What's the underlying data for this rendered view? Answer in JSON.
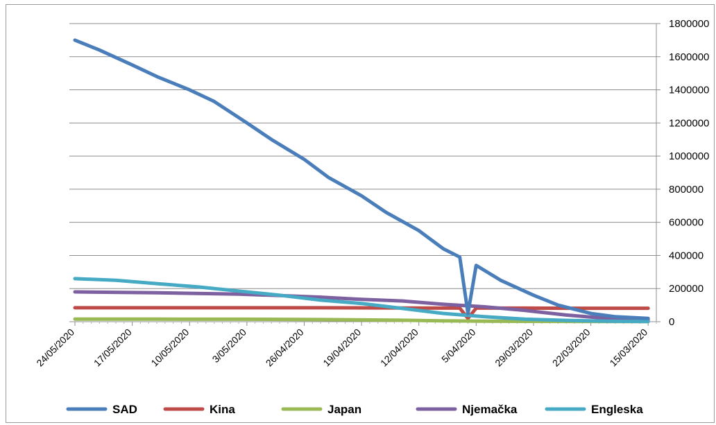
{
  "chart_data": {
    "type": "line",
    "title": "",
    "xlabel": "",
    "ylabel": "",
    "y_axis_position": "right",
    "x_axis_reversed": true,
    "ylim": [
      0,
      1800000
    ],
    "yticks": [
      "0",
      "200000",
      "400000",
      "600000",
      "800000",
      "1000000",
      "1200000",
      "1400000",
      "1600000",
      "1800000"
    ],
    "x_tick_labels": [
      "24/05/2020",
      "17/05/2020",
      "10/05/2020",
      "3/05/2020",
      "26/04/2020",
      "19/04/2020",
      "12/04/2020",
      "5/04/2020",
      "29/03/2020",
      "22/03/2020",
      "15/03/2020"
    ],
    "grid": "horizontal",
    "legend_position": "bottom",
    "x_day_range": [
      0,
      71
    ],
    "series": [
      {
        "name": "SAD",
        "color": "#4a7ebb",
        "points": [
          [
            0,
            1700000
          ],
          [
            3,
            1640000
          ],
          [
            7,
            1550000
          ],
          [
            10,
            1480000
          ],
          [
            14,
            1400000
          ],
          [
            17,
            1330000
          ],
          [
            21,
            1200000
          ],
          [
            24,
            1100000
          ],
          [
            28,
            980000
          ],
          [
            31,
            870000
          ],
          [
            35,
            760000
          ],
          [
            38,
            660000
          ],
          [
            42,
            550000
          ],
          [
            45,
            440000
          ],
          [
            47,
            390000
          ],
          [
            48,
            50000
          ],
          [
            49,
            340000
          ],
          [
            52,
            250000
          ],
          [
            56,
            160000
          ],
          [
            59,
            100000
          ],
          [
            63,
            50000
          ],
          [
            66,
            30000
          ],
          [
            70,
            20000
          ]
        ]
      },
      {
        "name": "Kina",
        "color": "#be4b48",
        "points": [
          [
            0,
            84000
          ],
          [
            10,
            84000
          ],
          [
            20,
            84000
          ],
          [
            30,
            84000
          ],
          [
            40,
            83000
          ],
          [
            47,
            82000
          ],
          [
            48,
            20000
          ],
          [
            49,
            82000
          ],
          [
            55,
            82000
          ],
          [
            60,
            81000
          ],
          [
            70,
            81000
          ]
        ]
      },
      {
        "name": "Japan",
        "color": "#98b954",
        "points": [
          [
            0,
            16000
          ],
          [
            10,
            15500
          ],
          [
            20,
            15000
          ],
          [
            30,
            13000
          ],
          [
            40,
            9000
          ],
          [
            45,
            5000
          ],
          [
            50,
            3000
          ],
          [
            55,
            2000
          ],
          [
            60,
            1500
          ],
          [
            70,
            1000
          ]
        ]
      },
      {
        "name": "Njemačka",
        "color": "#7d60a0",
        "points": [
          [
            0,
            180000
          ],
          [
            10,
            175000
          ],
          [
            20,
            166000
          ],
          [
            25,
            158000
          ],
          [
            30,
            148000
          ],
          [
            35,
            135000
          ],
          [
            40,
            125000
          ],
          [
            45,
            105000
          ],
          [
            50,
            90000
          ],
          [
            55,
            68000
          ],
          [
            60,
            40000
          ],
          [
            65,
            20000
          ],
          [
            70,
            10000
          ]
        ]
      },
      {
        "name": "Engleska",
        "color": "#46aac5",
        "points": [
          [
            0,
            260000
          ],
          [
            5,
            250000
          ],
          [
            10,
            230000
          ],
          [
            15,
            210000
          ],
          [
            20,
            185000
          ],
          [
            25,
            160000
          ],
          [
            30,
            130000
          ],
          [
            35,
            110000
          ],
          [
            40,
            80000
          ],
          [
            45,
            50000
          ],
          [
            50,
            30000
          ],
          [
            55,
            15000
          ],
          [
            60,
            8000
          ],
          [
            65,
            3000
          ],
          [
            70,
            1000
          ]
        ]
      }
    ]
  }
}
